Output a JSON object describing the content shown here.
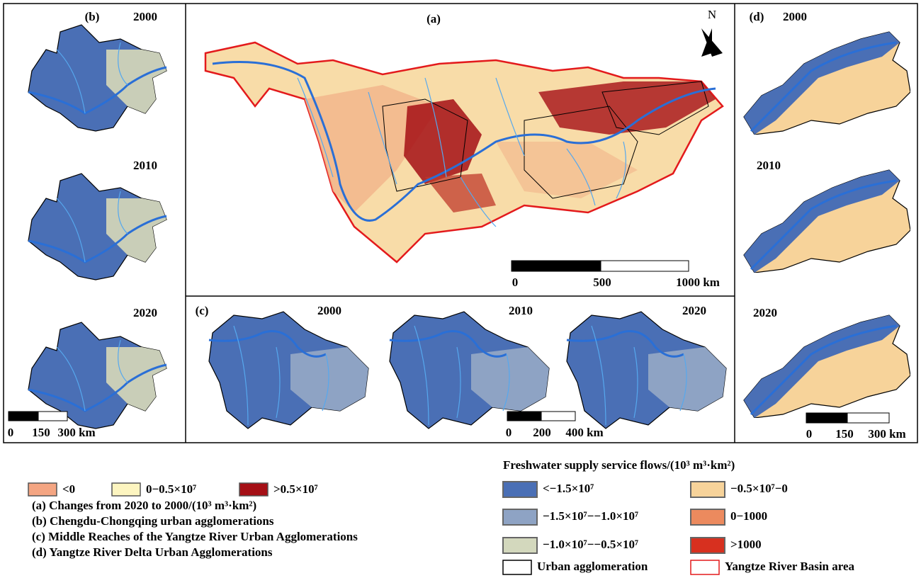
{
  "panels": {
    "a": {
      "label": "(a)",
      "north": "N",
      "scale": [
        "0",
        "500",
        "1000 km"
      ]
    },
    "b": {
      "label": "(b)",
      "years": [
        "2000",
        "2010",
        "2020"
      ],
      "scale": [
        "0",
        "150",
        "300 km"
      ]
    },
    "c": {
      "label": "(c)",
      "years": [
        "2000",
        "2010",
        "2020"
      ],
      "scale": [
        "0",
        "200",
        "400 km"
      ]
    },
    "d": {
      "label": "(d)",
      "years": [
        "2000",
        "2010",
        "2020"
      ],
      "scale": [
        "0",
        "150",
        "300 km"
      ]
    }
  },
  "legend_change": {
    "items": [
      {
        "label": "<0",
        "color": "#f4a582"
      },
      {
        "label": "0−0.5×10⁷",
        "color": "#fdf5c0"
      },
      {
        "label": ">0.5×10⁷",
        "color": "#a50f15"
      }
    ],
    "notes": [
      "(a) Changes from 2020 to 2000/(10³ m³·km²)",
      "(b) Chengdu-Chongqing urban agglomerations",
      "(c) Middle Reaches of the Yangtze River Urban Agglomerations",
      "(d) Yangtze River Delta Urban Agglomerations"
    ]
  },
  "legend_flow": {
    "title": "Freshwater supply service flows/(10³ m³·km²)",
    "items": [
      {
        "label": "<−1.5×10⁷",
        "color": "#4a6fb5"
      },
      {
        "label": "−1.5×10⁷−−1.0×10⁷",
        "color": "#8ea3c4"
      },
      {
        "label": "−1.0×10⁷−−0.5×10⁷",
        "color": "#d3d8bd"
      },
      {
        "label": "−0.5×10⁷−0",
        "color": "#f7d39a"
      },
      {
        "label": "0−1000",
        "color": "#ec8a5e"
      },
      {
        "label": ">1000",
        "color": "#d7301f"
      }
    ],
    "outlines": [
      {
        "label": "Urban agglomeration",
        "color": "#000000"
      },
      {
        "label": "Yangtze River Basin area",
        "color": "#e31a1c"
      }
    ]
  }
}
